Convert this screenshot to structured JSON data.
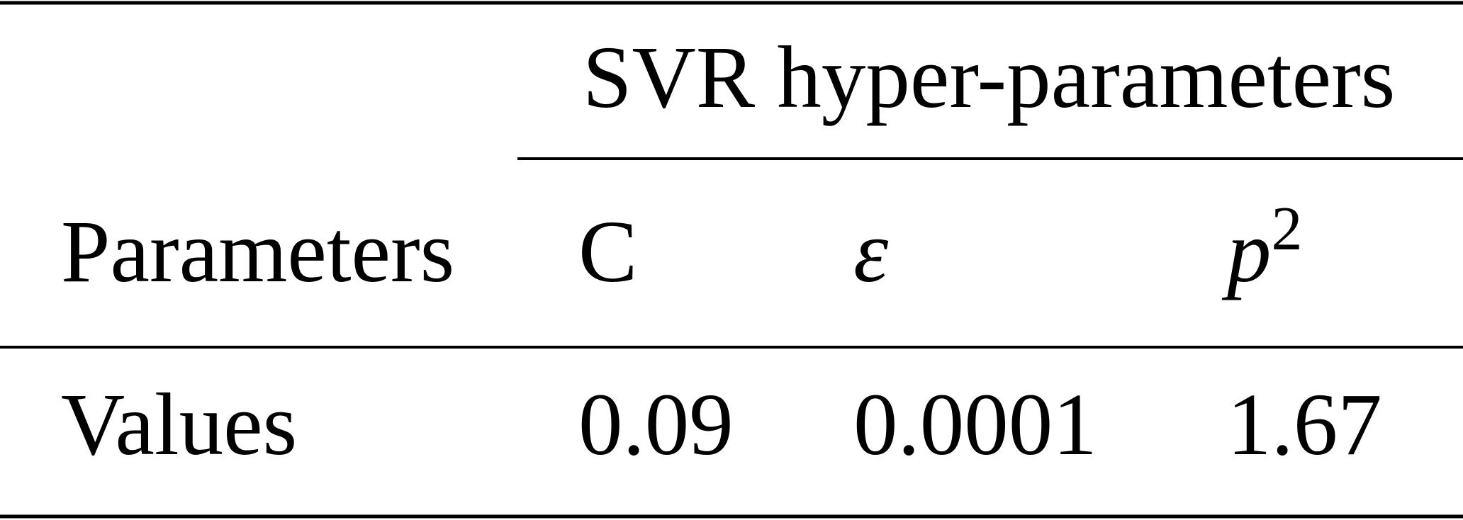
{
  "table": {
    "group_header": "SVR hyper-parameters",
    "columns": [
      "Parameters",
      "C",
      "ε",
      {
        "base": "p",
        "sup": "2"
      }
    ],
    "rows": [
      [
        "Values",
        "0.09",
        "0.0001",
        "1.67"
      ]
    ]
  }
}
